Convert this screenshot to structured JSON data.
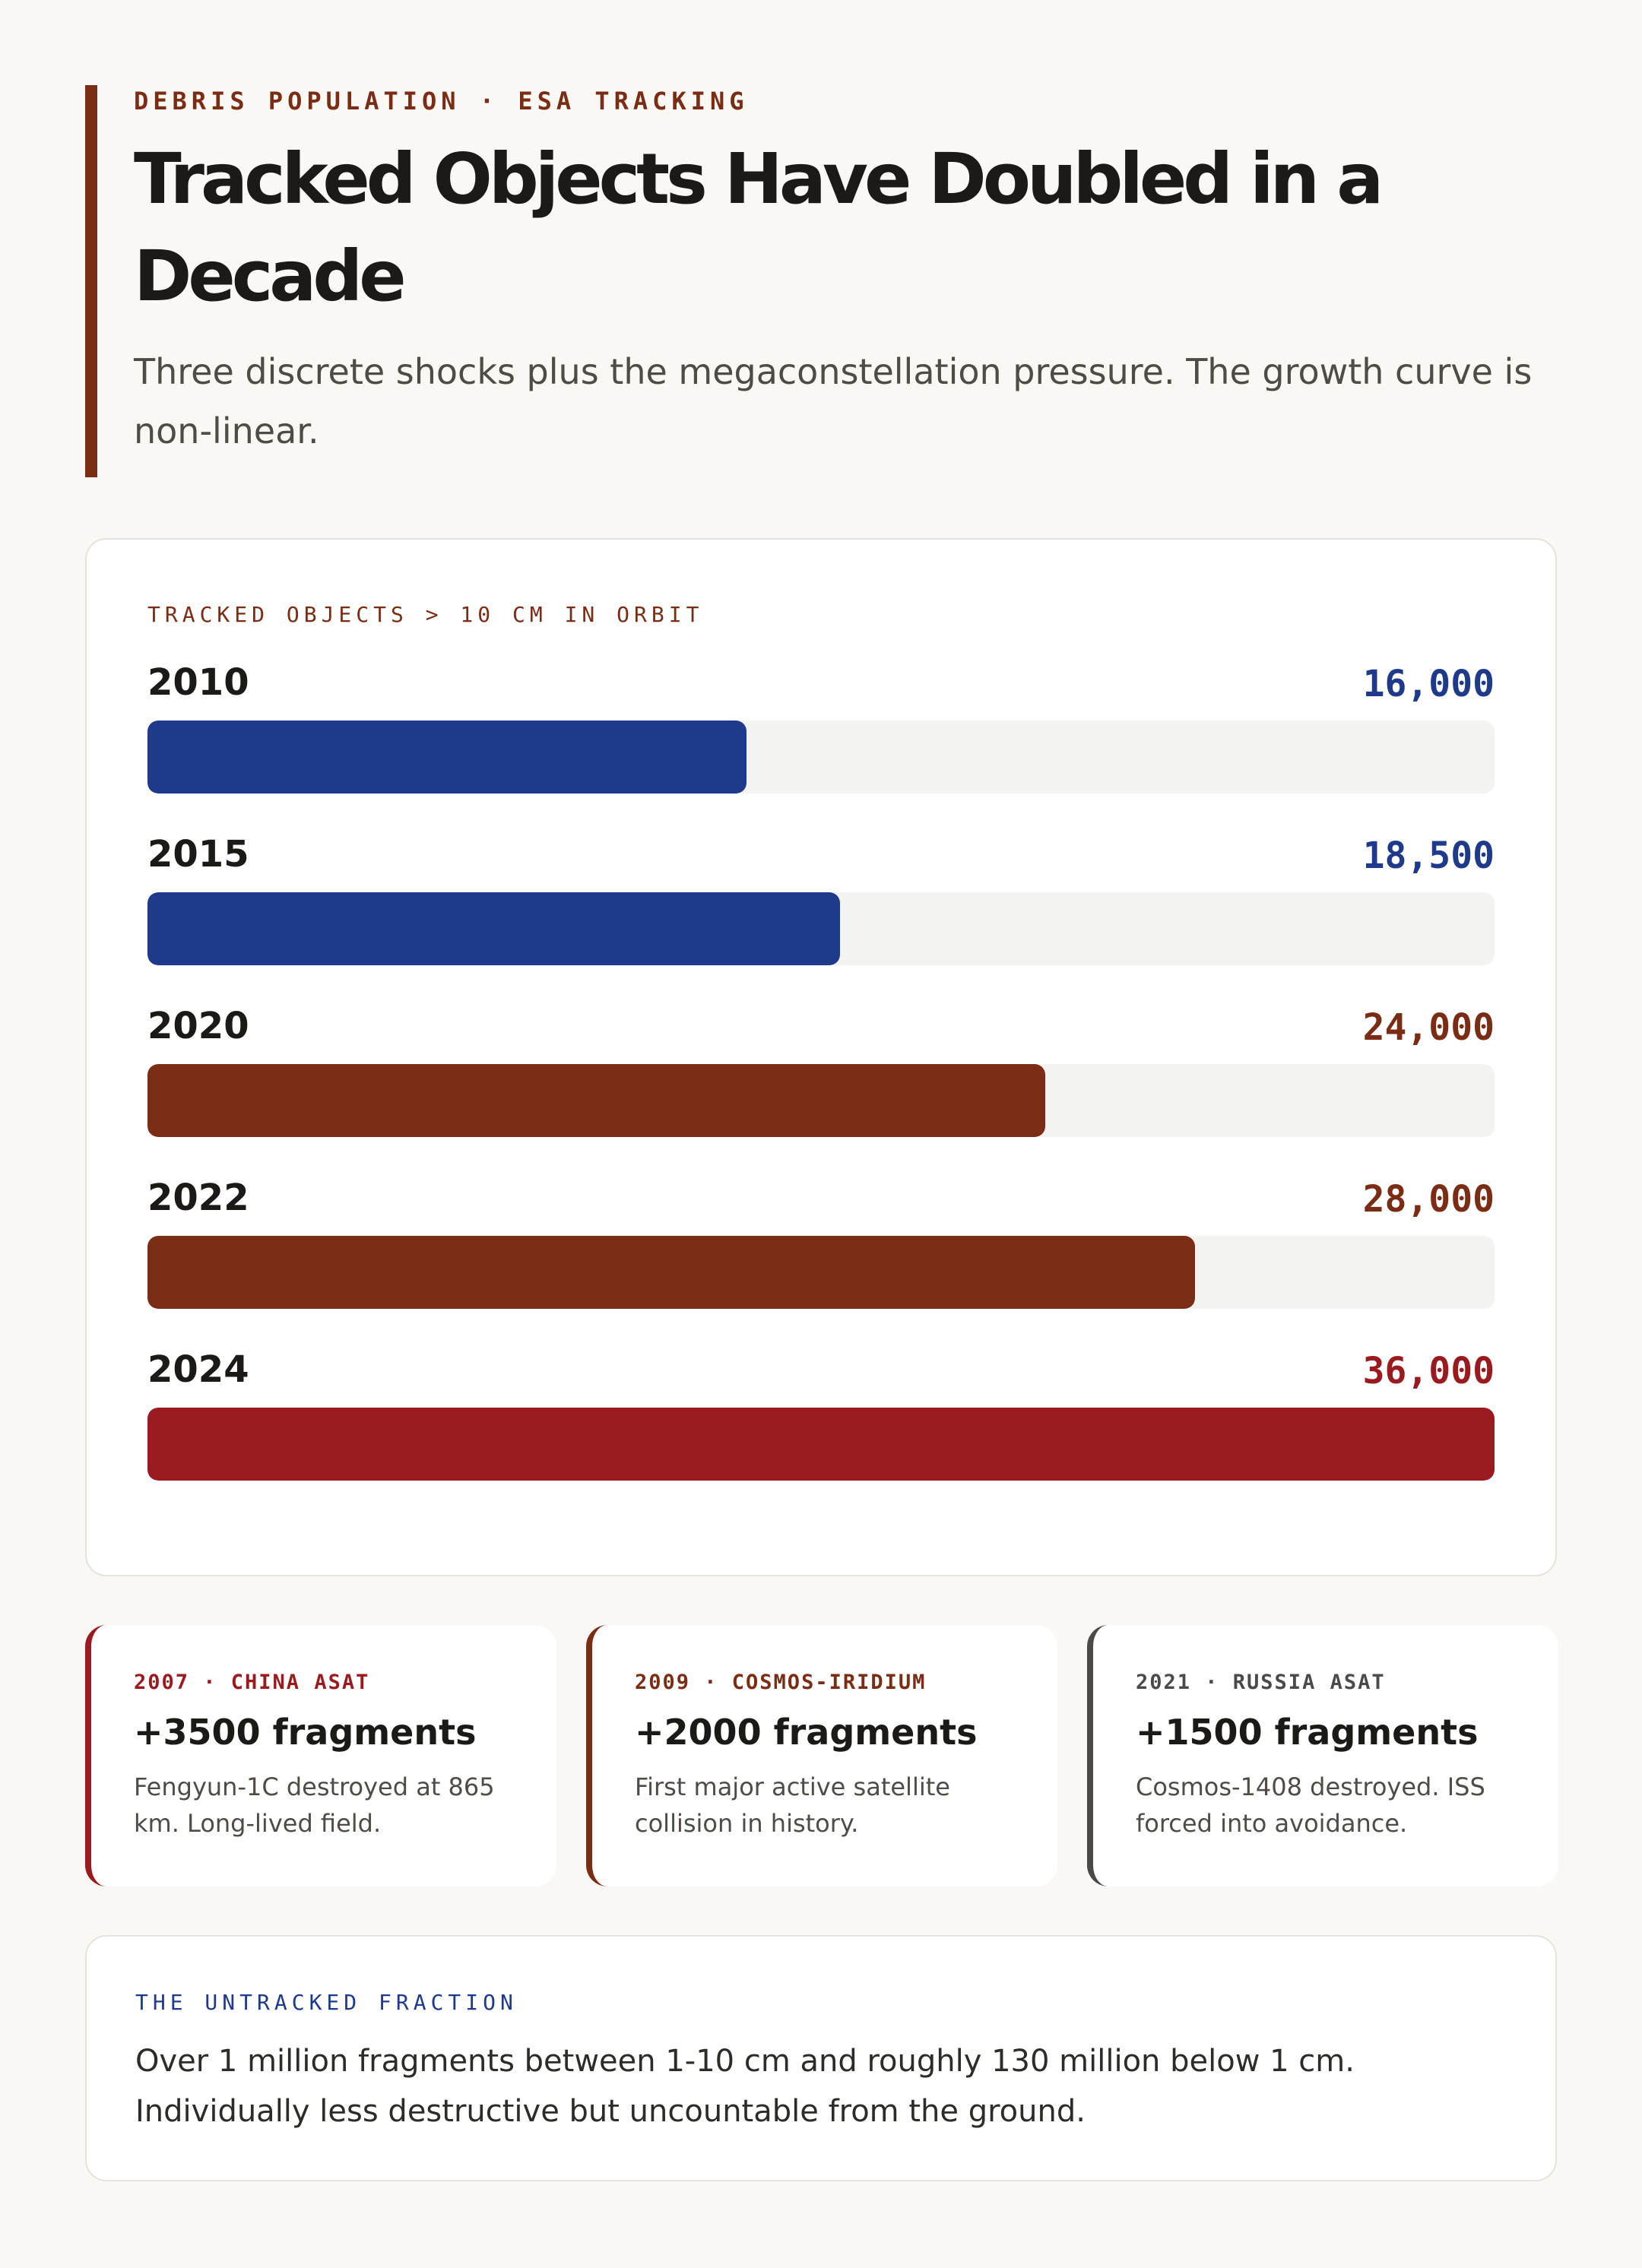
{
  "header": {
    "eyebrow": "DEBRIS POPULATION · ESA TRACKING",
    "title": "Tracked Objects Have Doubled in a Decade",
    "subtitle": "Three discrete shocks plus the megaconstellation pressure. The growth curve is non-linear."
  },
  "chart_data": {
    "type": "bar",
    "orientation": "horizontal",
    "title": "TRACKED OBJECTS > 10 CM IN ORBIT",
    "categories": [
      "2010",
      "2015",
      "2020",
      "2022",
      "2024"
    ],
    "values": [
      16000,
      18500,
      24000,
      28000,
      36000
    ],
    "value_labels": [
      "16,000",
      "18,500",
      "24,000",
      "28,000",
      "36,000"
    ],
    "colors": [
      "#1f3a8a",
      "#1f3a8a",
      "#7a2d14",
      "#7a2d14",
      "#9a1b1f"
    ],
    "xlim": [
      0,
      36000
    ],
    "grid": false
  },
  "events": [
    {
      "tag": "2007 · CHINA ASAT",
      "headline": "+3500 fragments",
      "description": "Fengyun-1C destroyed at 865 km. Long-lived field.",
      "color": "#9a1b1f"
    },
    {
      "tag": "2009 · COSMOS-IRIDIUM",
      "headline": "+2000 fragments",
      "description": "First major active satellite collision in history.",
      "color": "#7a2d14"
    },
    {
      "tag": "2021 · RUSSIA ASAT",
      "headline": "+1500 fragments",
      "description": "Cosmos-1408 destroyed. ISS forced into avoidance.",
      "color": "#4a4a4a"
    }
  ],
  "note": {
    "label": "THE UNTRACKED FRACTION",
    "text": "Over 1 million fragments between 1-10 cm and roughly 130 million below 1 cm. Individually less destructive but uncountable from the ground."
  }
}
